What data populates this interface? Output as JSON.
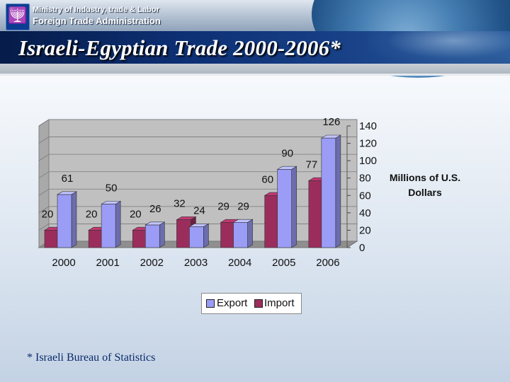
{
  "header": {
    "ministry": "Ministry of Industry, trade & Labor",
    "department": "Foreign Trade Administration",
    "emblem_icon": "menorah-emblem-icon"
  },
  "title": "Israeli-Egyptian Trade 2000-2006*",
  "footnote": "* Israeli Bureau of Statistics",
  "chart_data": {
    "type": "bar",
    "style": "3d-clustered-column",
    "categories": [
      "2000",
      "2001",
      "2002",
      "2003",
      "2004",
      "2005",
      "2006"
    ],
    "series": [
      {
        "name": "Export",
        "color": "#9a9cf6",
        "values": [
          61,
          50,
          26,
          24,
          29,
          90,
          126
        ]
      },
      {
        "name": "Import",
        "color": "#9b2d5c",
        "values": [
          20,
          20,
          20,
          32,
          29,
          60,
          77
        ]
      }
    ],
    "y_axis_position": "right",
    "ylabel": "Millions of U.S. Dollars",
    "ylim": [
      0,
      140
    ],
    "yticks": [
      0,
      20,
      40,
      60,
      80,
      100,
      120,
      140
    ],
    "grid": true,
    "data_labels": true,
    "legend_position": "bottom",
    "plot_background": "#c0c0c0"
  }
}
